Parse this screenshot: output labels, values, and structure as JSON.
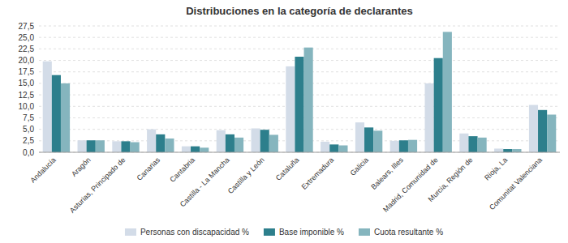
{
  "chart_data": {
    "type": "bar",
    "title": "Distribuciones en la categoría de declarantes",
    "categories": [
      "Andalucía",
      "Aragón",
      "Asturias, Principado de",
      "Canarias",
      "Cantabria",
      "Castilla - La Mancha",
      "Castilla y León",
      "Cataluña",
      "Extremadura",
      "Galicia",
      "Balears, Illes",
      "Madrid, Comunidad de",
      "Murcia, Región de",
      "Rioja, La",
      "Comunitat Valenciana"
    ],
    "series": [
      {
        "name": "Personas con discapacidad %",
        "color": "#d3dce8",
        "values": [
          19.8,
          2.6,
          2.4,
          5.0,
          1.3,
          4.8,
          5.2,
          18.7,
          2.3,
          6.5,
          2.5,
          15.0,
          4.1,
          0.8,
          10.3
        ]
      },
      {
        "name": "Base imponible %",
        "color": "#2d7f8c",
        "values": [
          16.8,
          2.6,
          2.4,
          3.9,
          1.3,
          3.9,
          4.9,
          20.8,
          1.7,
          5.4,
          2.6,
          20.5,
          3.5,
          0.7,
          9.2
        ]
      },
      {
        "name": "Cuota resultante %",
        "color": "#85b5be",
        "values": [
          15.0,
          2.6,
          2.2,
          3.0,
          1.0,
          3.2,
          3.8,
          22.8,
          1.5,
          4.7,
          2.7,
          26.2,
          3.2,
          0.7,
          8.2
        ]
      }
    ],
    "ylim": [
      0,
      27.5
    ],
    "yticks": [
      {
        "value": 0.0,
        "label": "0,0"
      },
      {
        "value": 2.5,
        "label": "2,5"
      },
      {
        "value": 5.0,
        "label": "5,0"
      },
      {
        "value": 7.5,
        "label": "7,5"
      },
      {
        "value": 10.0,
        "label": "10,0"
      },
      {
        "value": 12.5,
        "label": "12,5"
      },
      {
        "value": 15.0,
        "label": "15,0"
      },
      {
        "value": 17.5,
        "label": "17,5"
      },
      {
        "value": 20.0,
        "label": "20,0"
      },
      {
        "value": 22.5,
        "label": "22,5"
      },
      {
        "value": 25.0,
        "label": "25,0"
      },
      {
        "value": 27.5,
        "label": "27,5"
      }
    ],
    "grid": true,
    "legend": "bottom"
  }
}
